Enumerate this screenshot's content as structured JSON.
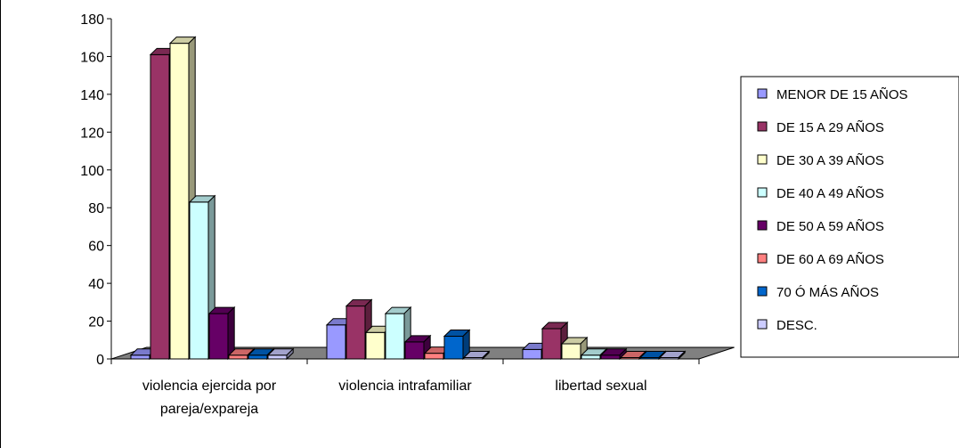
{
  "chart_data": {
    "type": "bar",
    "categories": [
      "violencia ejercida por pareja/expareja",
      "violencia intrafamiliar",
      "libertad sexual"
    ],
    "category_label_lines": [
      [
        "violencia ejercida por",
        "pareja/expareja"
      ],
      [
        "violencia intrafamiliar"
      ],
      [
        "libertad sexual"
      ]
    ],
    "series": [
      {
        "name": "MENOR DE 15 AÑOS",
        "color": "#9999ff",
        "values": [
          2,
          18,
          5
        ]
      },
      {
        "name": "DE 15 A 29 AÑOS",
        "color": "#993366",
        "values": [
          161,
          28,
          16
        ]
      },
      {
        "name": "DE 30 A 39 AÑOS",
        "color": "#ffffcc",
        "values": [
          167,
          14,
          8
        ]
      },
      {
        "name": "DE 40 A 49 AÑOS",
        "color": "#ccffff",
        "values": [
          83,
          24,
          2
        ]
      },
      {
        "name": "DE 50 A 59 AÑOS",
        "color": "#660066",
        "values": [
          24,
          9,
          2
        ]
      },
      {
        "name": "DE 60 A 69 AÑOS",
        "color": "#ff8080",
        "values": [
          2,
          3,
          0
        ]
      },
      {
        "name": "70 Ó MÁS AÑOS",
        "color": "#0066cc",
        "values": [
          2,
          12,
          0
        ]
      },
      {
        "name": "DESC.",
        "color": "#ccccff",
        "values": [
          2,
          0,
          0
        ]
      }
    ],
    "ylim": [
      0,
      180
    ],
    "yticks": [
      0,
      20,
      40,
      60,
      80,
      100,
      120,
      140,
      160,
      180
    ],
    "legend_position": "right",
    "floor_color": "#808080",
    "grid": false
  }
}
